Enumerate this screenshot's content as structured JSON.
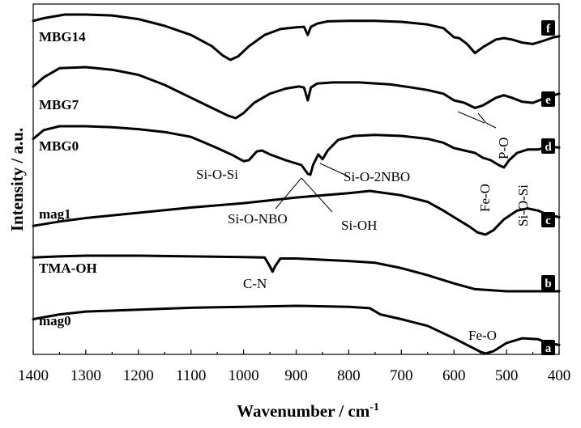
{
  "chart_data": {
    "type": "line",
    "xlabel": "Wavenumber / cm",
    "xlabel_sup": "-1",
    "ylabel": "Intensity / a.u.",
    "xlim": [
      1400,
      400
    ],
    "x_reversed": true,
    "y_ticks_shown": false,
    "x_ticks": [
      1400,
      1300,
      1200,
      1100,
      1000,
      900,
      800,
      700,
      600,
      500,
      400
    ],
    "legend": "inline labels at left, letter badges at right",
    "series": [
      {
        "name": "MBG14",
        "badge": "f",
        "points": [
          [
            1400,
            0.86
          ],
          [
            1380,
            0.92
          ],
          [
            1340,
            1.0
          ],
          [
            1300,
            1.0
          ],
          [
            1250,
            0.98
          ],
          [
            1200,
            0.9
          ],
          [
            1150,
            0.75
          ],
          [
            1100,
            0.55
          ],
          [
            1060,
            0.3
          ],
          [
            1040,
            0.1
          ],
          [
            1025,
            0.0
          ],
          [
            1010,
            0.08
          ],
          [
            990,
            0.3
          ],
          [
            960,
            0.55
          ],
          [
            930,
            0.68
          ],
          [
            900,
            0.72
          ],
          [
            885,
            0.73
          ],
          [
            878,
            0.55
          ],
          [
            872,
            0.73
          ],
          [
            860,
            0.8
          ],
          [
            840,
            0.85
          ],
          [
            800,
            0.86
          ],
          [
            750,
            0.86
          ],
          [
            700,
            0.84
          ],
          [
            650,
            0.78
          ],
          [
            620,
            0.7
          ],
          [
            600,
            0.5
          ],
          [
            590,
            0.48
          ],
          [
            575,
            0.35
          ],
          [
            560,
            0.15
          ],
          [
            545,
            0.28
          ],
          [
            520,
            0.45
          ],
          [
            505,
            0.48
          ],
          [
            490,
            0.45
          ],
          [
            470,
            0.38
          ],
          [
            450,
            0.35
          ],
          [
            430,
            0.42
          ],
          [
            410,
            0.5
          ],
          [
            400,
            0.52
          ]
        ]
      },
      {
        "name": "MBG7",
        "badge": "e",
        "points": [
          [
            1400,
            0.62
          ],
          [
            1380,
            0.8
          ],
          [
            1350,
            0.98
          ],
          [
            1300,
            1.0
          ],
          [
            1250,
            0.95
          ],
          [
            1200,
            0.85
          ],
          [
            1150,
            0.65
          ],
          [
            1100,
            0.4
          ],
          [
            1060,
            0.2
          ],
          [
            1030,
            0.05
          ],
          [
            1015,
            0.0
          ],
          [
            1000,
            0.1
          ],
          [
            980,
            0.3
          ],
          [
            950,
            0.48
          ],
          [
            920,
            0.58
          ],
          [
            895,
            0.62
          ],
          [
            885,
            0.6
          ],
          [
            878,
            0.35
          ],
          [
            872,
            0.6
          ],
          [
            860,
            0.68
          ],
          [
            830,
            0.7
          ],
          [
            780,
            0.7
          ],
          [
            720,
            0.66
          ],
          [
            680,
            0.6
          ],
          [
            650,
            0.55
          ],
          [
            620,
            0.48
          ],
          [
            600,
            0.35
          ],
          [
            580,
            0.3
          ],
          [
            560,
            0.2
          ],
          [
            545,
            0.25
          ],
          [
            520,
            0.4
          ],
          [
            505,
            0.45
          ],
          [
            490,
            0.4
          ],
          [
            470,
            0.32
          ],
          [
            450,
            0.3
          ],
          [
            430,
            0.38
          ],
          [
            410,
            0.45
          ],
          [
            400,
            0.48
          ]
        ]
      },
      {
        "name": "MBG0",
        "badge": "d",
        "points": [
          [
            1400,
            0.74
          ],
          [
            1380,
            0.92
          ],
          [
            1350,
            1.0
          ],
          [
            1300,
            1.0
          ],
          [
            1250,
            0.98
          ],
          [
            1200,
            0.94
          ],
          [
            1150,
            0.88
          ],
          [
            1100,
            0.78
          ],
          [
            1050,
            0.55
          ],
          [
            1020,
            0.4
          ],
          [
            1000,
            0.28
          ],
          [
            990,
            0.3
          ],
          [
            975,
            0.48
          ],
          [
            965,
            0.5
          ],
          [
            950,
            0.42
          ],
          [
            920,
            0.3
          ],
          [
            890,
            0.2
          ],
          [
            878,
            0.02
          ],
          [
            873,
            0.0
          ],
          [
            868,
            0.2
          ],
          [
            858,
            0.42
          ],
          [
            850,
            0.32
          ],
          [
            840,
            0.5
          ],
          [
            820,
            0.72
          ],
          [
            790,
            0.8
          ],
          [
            750,
            0.82
          ],
          [
            700,
            0.8
          ],
          [
            650,
            0.74
          ],
          [
            620,
            0.66
          ],
          [
            600,
            0.55
          ],
          [
            580,
            0.5
          ],
          [
            560,
            0.45
          ],
          [
            545,
            0.35
          ],
          [
            530,
            0.3
          ],
          [
            515,
            0.2
          ],
          [
            505,
            0.15
          ],
          [
            495,
            0.3
          ],
          [
            480,
            0.45
          ],
          [
            460,
            0.52
          ],
          [
            440,
            0.52
          ],
          [
            420,
            0.58
          ],
          [
            400,
            0.56
          ]
        ]
      },
      {
        "name": "mag1",
        "badge": "c",
        "points": [
          [
            1400,
            0.2
          ],
          [
            1350,
            0.3
          ],
          [
            1300,
            0.38
          ],
          [
            1200,
            0.5
          ],
          [
            1100,
            0.62
          ],
          [
            1000,
            0.72
          ],
          [
            900,
            0.85
          ],
          [
            800,
            0.95
          ],
          [
            760,
            1.0
          ],
          [
            700,
            0.9
          ],
          [
            650,
            0.75
          ],
          [
            620,
            0.55
          ],
          [
            600,
            0.4
          ],
          [
            570,
            0.18
          ],
          [
            555,
            0.05
          ],
          [
            540,
            0.0
          ],
          [
            525,
            0.1
          ],
          [
            505,
            0.35
          ],
          [
            480,
            0.55
          ],
          [
            460,
            0.6
          ],
          [
            440,
            0.55
          ],
          [
            420,
            0.45
          ],
          [
            400,
            0.4
          ]
        ]
      },
      {
        "name": "TMA-OH",
        "badge": "b",
        "points": [
          [
            1400,
            0.95
          ],
          [
            1350,
            0.98
          ],
          [
            1300,
            1.0
          ],
          [
            1200,
            1.0
          ],
          [
            1100,
            0.98
          ],
          [
            1000,
            0.96
          ],
          [
            960,
            0.95
          ],
          [
            950,
            0.7
          ],
          [
            945,
            0.55
          ],
          [
            940,
            0.7
          ],
          [
            930,
            0.92
          ],
          [
            900,
            0.92
          ],
          [
            800,
            0.85
          ],
          [
            750,
            0.8
          ],
          [
            700,
            0.65
          ],
          [
            650,
            0.45
          ],
          [
            600,
            0.22
          ],
          [
            560,
            0.06
          ],
          [
            500,
            0.0
          ],
          [
            450,
            0.0
          ],
          [
            400,
            0.0
          ]
        ]
      },
      {
        "name": "mag0",
        "badge": "a",
        "points": [
          [
            1400,
            0.72
          ],
          [
            1350,
            0.82
          ],
          [
            1300,
            0.88
          ],
          [
            1200,
            0.92
          ],
          [
            1100,
            0.96
          ],
          [
            1000,
            0.98
          ],
          [
            900,
            1.0
          ],
          [
            800,
            0.98
          ],
          [
            760,
            0.95
          ],
          [
            740,
            0.82
          ],
          [
            700,
            0.72
          ],
          [
            650,
            0.58
          ],
          [
            600,
            0.32
          ],
          [
            570,
            0.15
          ],
          [
            550,
            0.04
          ],
          [
            540,
            0.0
          ],
          [
            525,
            0.05
          ],
          [
            500,
            0.22
          ],
          [
            470,
            0.32
          ],
          [
            440,
            0.3
          ],
          [
            420,
            0.22
          ],
          [
            400,
            0.18
          ]
        ]
      }
    ],
    "annotations": [
      {
        "text": "Si-O-Si",
        "near_series": "MBG0",
        "x": 1000
      },
      {
        "text": "Si-O-2NBO",
        "near_series": "MBG0",
        "x": 850
      },
      {
        "text": "Si-O-NBO",
        "near_series": "MBG0",
        "x": 875
      },
      {
        "text": "Si-OH",
        "near_series": "MBG0",
        "x": 875
      },
      {
        "text": "Fe-O",
        "near_series": "MBG0",
        "x": 580,
        "rotated": true
      },
      {
        "text": "P-O",
        "near_series": "MBG7",
        "x": 560,
        "rotated": true
      },
      {
        "text": "Si-O-Si",
        "near_series": "MBG0",
        "x": 505,
        "rotated": true
      },
      {
        "text": "C-N",
        "near_series": "TMA-OH",
        "x": 945
      },
      {
        "text": "Fe-O",
        "near_series": "mag0",
        "x": 545
      }
    ]
  }
}
